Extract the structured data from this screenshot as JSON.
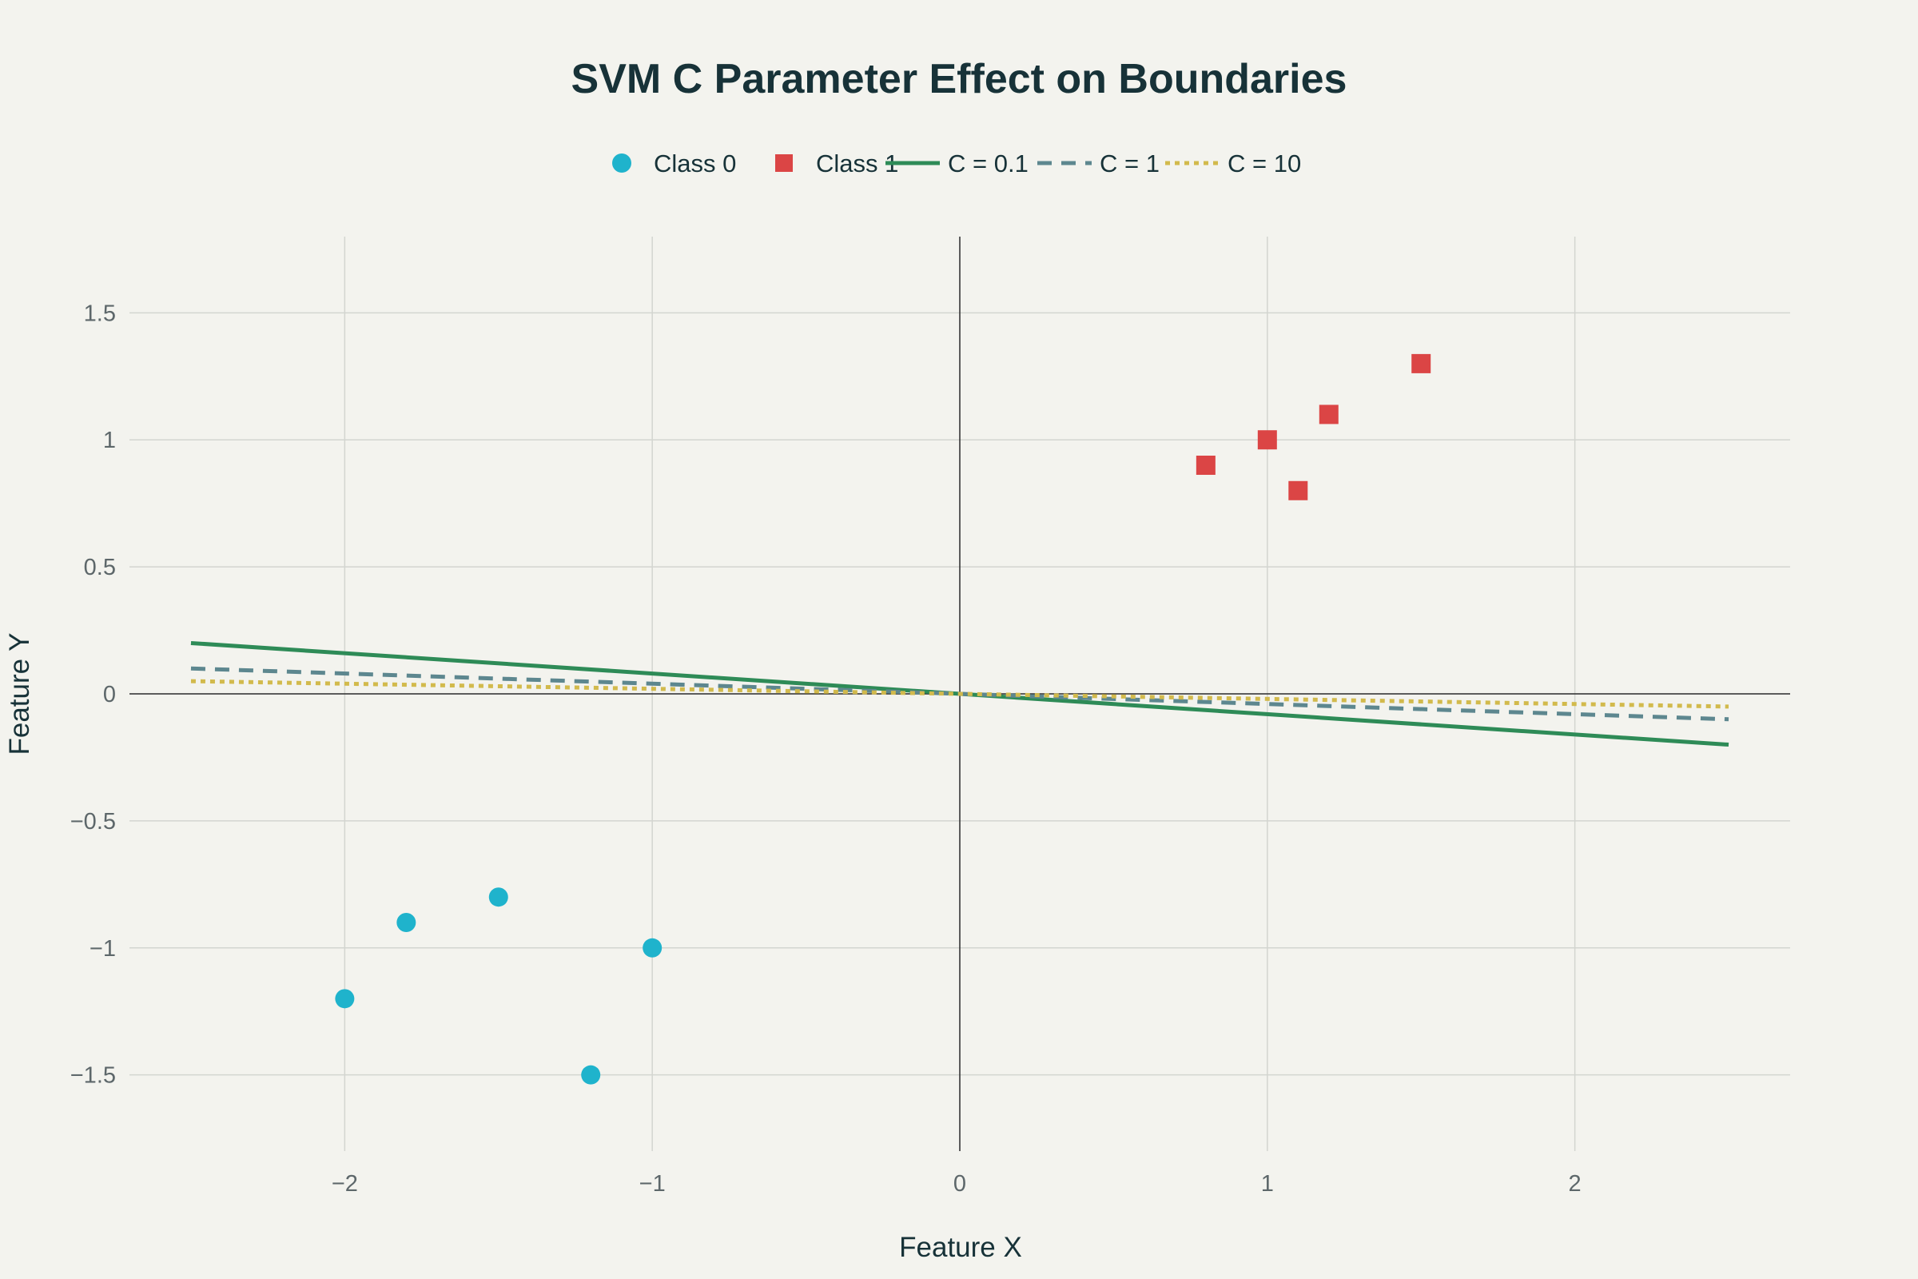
{
  "chart_data": {
    "type": "scatter",
    "title": "SVM C Parameter Effect on Boundaries",
    "xlabel": "Feature X",
    "ylabel": "Feature Y",
    "xlim": [
      -2.7,
      2.7
    ],
    "ylim": [
      -1.8,
      1.8
    ],
    "x_ticks": [
      -2,
      -1,
      0,
      1,
      2
    ],
    "x_tick_labels": [
      "−2",
      "−1",
      "0",
      "1",
      "2"
    ],
    "y_ticks": [
      1.5,
      1,
      0.5,
      0,
      -0.5,
      -1,
      -1.5
    ],
    "y_tick_labels": [
      "1.5",
      "1",
      "0.5",
      "0",
      "−0.5",
      "−1",
      "−1.5"
    ],
    "grid": true,
    "legend_position": "top-center",
    "series": [
      {
        "name": "Class 0",
        "kind": "markers",
        "marker": "circle",
        "color": "#1fb3cc",
        "points": [
          [
            -2,
            -1.2
          ],
          [
            -1.8,
            -0.9
          ],
          [
            -1.5,
            -0.8
          ],
          [
            -1.2,
            -1.5
          ],
          [
            -1,
            -1
          ]
        ]
      },
      {
        "name": "Class 1",
        "kind": "markers",
        "marker": "square",
        "color": "#db4545",
        "points": [
          [
            0.8,
            0.9
          ],
          [
            1,
            1
          ],
          [
            1.1,
            0.8
          ],
          [
            1.2,
            1.1
          ],
          [
            1.5,
            1.3
          ]
        ]
      },
      {
        "name": "C = 0.1",
        "kind": "line",
        "dash": "solid",
        "color": "#2e8b57",
        "points": [
          [
            -2.5,
            0.2
          ],
          [
            2.5,
            -0.2
          ]
        ]
      },
      {
        "name": "C = 1",
        "kind": "line",
        "dash": "dash",
        "color": "#5d878f",
        "points": [
          [
            -2.5,
            0.1
          ],
          [
            2.5,
            -0.1
          ]
        ]
      },
      {
        "name": "C = 10",
        "kind": "line",
        "dash": "dot",
        "color": "#d2ba4c",
        "points": [
          [
            -2.5,
            0.05
          ],
          [
            2.5,
            -0.05
          ]
        ]
      }
    ]
  }
}
